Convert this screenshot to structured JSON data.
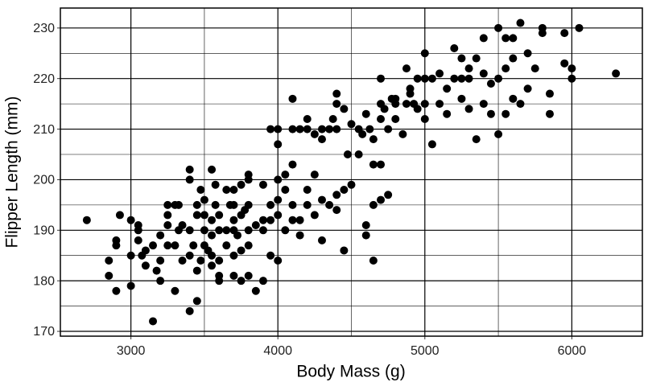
{
  "chart_data": {
    "type": "scatter",
    "x_label": "Body Mass (g)",
    "y_label": "Flipper Length (mm)",
    "color": "#000000",
    "x": [
      2700,
      2850,
      2850,
      2900,
      2900,
      2900,
      2925,
      3000,
      3000,
      3000,
      3050,
      3050,
      3075,
      3100,
      3100,
      3150,
      3150,
      3175,
      3200,
      3200,
      3200,
      3250,
      3250,
      3250,
      3300,
      3300,
      3300,
      3325,
      3350,
      3400,
      3400,
      3400,
      3400,
      3400,
      3425,
      3450,
      3450,
      3450,
      3450,
      3475,
      3500,
      3500,
      3500,
      3500,
      3525,
      3550,
      3550,
      3550,
      3550,
      3550,
      3575,
      3600,
      3600,
      3600,
      3600,
      3650,
      3650,
      3650,
      3700,
      3700,
      3700,
      3700,
      3700,
      3725,
      3750,
      3750,
      3750,
      3750,
      3775,
      3800,
      3800,
      3800,
      3800,
      3800,
      3850,
      3850,
      3900,
      3900,
      3900,
      3950,
      3950,
      3950,
      3950,
      4000,
      4000,
      4000,
      4000,
      4000,
      4050,
      4050,
      4100,
      4100,
      4100,
      4100,
      4150,
      4150,
      4200,
      4200,
      4250,
      4250,
      4300,
      4300,
      4300,
      4300,
      4350,
      4400,
      4400,
      4450,
      4450,
      4450,
      4500,
      4550,
      4600,
      4600,
      4650,
      4650,
      4700,
      4750,
      4800,
      3050,
      3250,
      3350,
      3600,
      3475,
      3900,
      3700,
      3325,
      3800,
      4050,
      4000,
      4200,
      4150,
      4400,
      4350,
      4475,
      4250,
      3675,
      3575,
      4100,
      4200,
      4375,
      4400,
      4400,
      4500,
      4550,
      4575,
      4600,
      4625,
      4650,
      4700,
      4700,
      4700,
      4725,
      4750,
      4775,
      4800,
      4850,
      4875,
      4875,
      4900,
      4925,
      4950,
      5000,
      5000,
      5000,
      5050,
      5050,
      5100,
      5100,
      5150,
      5200,
      5200,
      5250,
      5250,
      5300,
      5300,
      5350,
      5350,
      5400,
      5400,
      5400,
      5450,
      5500,
      5500,
      5500,
      5550,
      5550,
      5550,
      5600,
      5600,
      5650,
      5650,
      5700,
      5700,
      5750,
      5800,
      5800,
      5850,
      5850,
      5950,
      5950,
      6000,
      6000,
      6050,
      6300,
      4950,
      5150,
      5450,
      5300,
      5600,
      4800,
      4650,
      5250,
      4900,
      5000,
      4700
    ],
    "y": [
      192,
      184,
      181,
      178,
      188,
      187,
      193,
      179,
      185,
      192,
      191,
      190,
      185,
      183,
      186,
      172,
      187,
      182,
      180,
      184,
      189,
      187,
      191,
      193,
      178,
      187,
      195,
      190,
      191,
      174,
      185,
      190,
      200,
      202,
      187,
      176,
      182,
      195,
      193,
      184,
      187,
      190,
      196,
      193,
      186,
      183,
      185,
      189,
      192,
      202,
      195,
      180,
      181,
      190,
      193,
      187,
      190,
      198,
      181,
      185,
      190,
      195,
      198,
      189,
      180,
      186,
      193,
      199,
      194,
      181,
      187,
      190,
      195,
      200,
      178,
      191,
      180,
      190,
      199,
      185,
      192,
      195,
      210,
      184,
      196,
      200,
      207,
      210,
      190,
      201,
      192,
      195,
      203,
      216,
      189,
      210,
      195,
      210,
      193,
      209,
      188,
      196,
      208,
      210,
      195,
      197,
      217,
      186,
      198,
      214,
      199,
      205,
      191,
      189,
      184,
      195,
      196,
      197,
      215,
      188,
      195,
      184,
      184,
      198,
      192,
      192,
      195,
      201,
      198,
      193,
      198,
      192,
      194,
      210,
      205,
      201,
      195,
      199,
      210,
      212,
      212,
      215,
      210,
      211,
      210,
      209,
      213,
      210,
      203,
      212,
      203,
      220,
      214,
      210,
      216,
      212,
      209,
      215,
      222,
      217,
      215,
      214,
      215,
      220,
      225,
      207,
      220,
      221,
      215,
      213,
      220,
      226,
      216,
      220,
      222,
      214,
      208,
      224,
      221,
      215,
      228,
      219,
      209,
      220,
      230,
      222,
      213,
      228,
      228,
      216,
      231,
      215,
      218,
      225,
      222,
      229,
      230,
      217,
      213,
      229,
      223,
      220,
      222,
      230,
      221,
      220,
      218,
      213,
      220,
      224,
      216,
      208,
      224,
      218,
      212,
      215
    ],
    "xlim": [
      2520,
      6480
    ],
    "ylim": [
      169.05,
      233.95
    ],
    "xticks": [
      3000,
      4000,
      5000,
      6000
    ],
    "yticks": [
      170,
      180,
      190,
      200,
      210,
      220,
      230
    ],
    "x_minor_ticks": [
      3500,
      4500,
      5500
    ],
    "y_minor_ticks": [
      175,
      185,
      195,
      205,
      215,
      225
    ],
    "grid": true
  }
}
